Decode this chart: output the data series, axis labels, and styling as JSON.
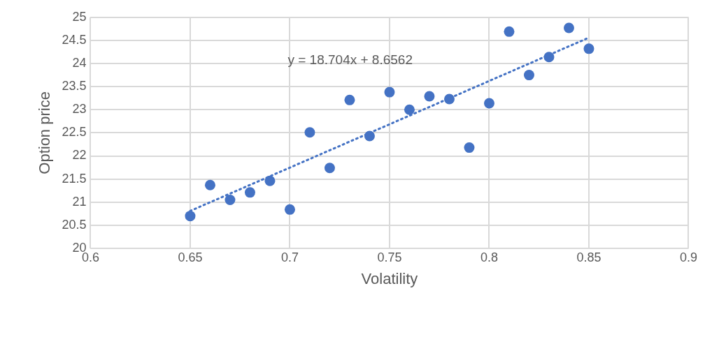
{
  "chart_data": {
    "type": "scatter",
    "xlabel": "Volatility",
    "ylabel": "Option price",
    "x": [
      0.65,
      0.66,
      0.67,
      0.68,
      0.69,
      0.7,
      0.71,
      0.72,
      0.73,
      0.74,
      0.75,
      0.76,
      0.77,
      0.78,
      0.79,
      0.8,
      0.81,
      0.82,
      0.83,
      0.84,
      0.85
    ],
    "series": [
      {
        "color": "#4472c4",
        "marker": "circle",
        "values": [
          20.7,
          21.37,
          21.05,
          21.21,
          21.46,
          20.84,
          22.51,
          21.74,
          23.21,
          22.43,
          23.38,
          23.0,
          23.29,
          23.23,
          22.18,
          23.14,
          24.69,
          23.75,
          24.14,
          24.77,
          24.32
        ]
      },
      {
        "type": "line",
        "color": "#4472c4",
        "line_style": "dotted",
        "marker": "none",
        "x": [
          0.65,
          0.85
        ],
        "values": [
          20.81,
          24.56
        ]
      }
    ],
    "annotations": [
      "y = 18.704x + 8.6562"
    ],
    "xlim": [
      0.6,
      0.9
    ],
    "xticks": [
      0.6,
      0.65,
      0.7,
      0.75,
      0.8,
      0.85,
      0.9
    ],
    "ylim": [
      20,
      25
    ],
    "yticks": [
      20,
      20.5,
      21,
      21.5,
      22,
      22.5,
      23,
      23.5,
      24,
      24.5,
      25
    ],
    "grid": true,
    "legend": false
  }
}
